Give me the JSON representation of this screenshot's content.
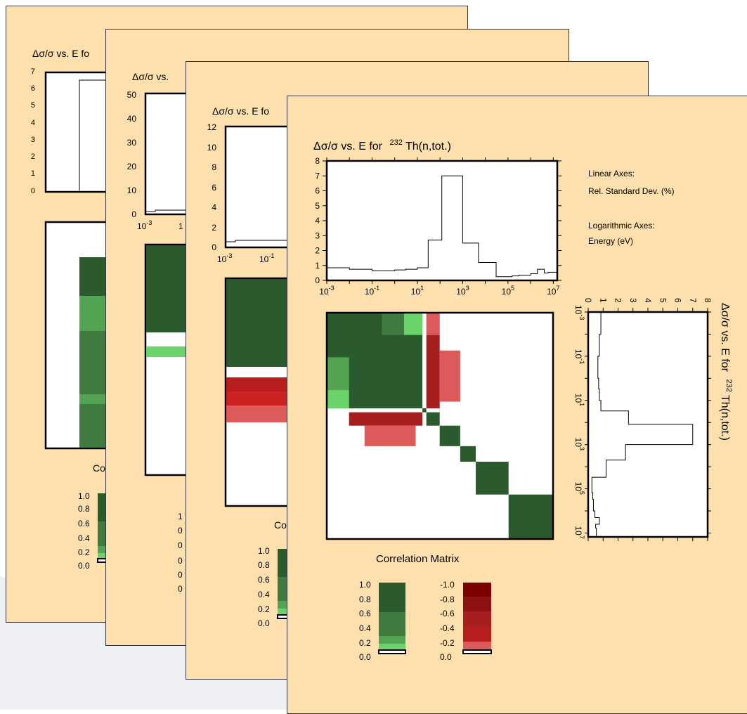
{
  "sheets": [
    {
      "title": "Δσ/σ vs. E fo",
      "y_ticks": [
        "0",
        "1",
        "2",
        "3",
        "4",
        "5",
        "6",
        "7"
      ],
      "matrix_caption": "Co",
      "scale_ticks": [
        "1.0",
        "0.8",
        "0.6",
        "0.4",
        "0.2",
        "0.0"
      ]
    },
    {
      "title": "Δσ/σ vs.",
      "y_ticks": [
        "0",
        "10",
        "20",
        "30",
        "40",
        "50"
      ],
      "x_ticks": [
        "10-3",
        "1"
      ],
      "scale_ticks": [
        "1",
        "0",
        "0",
        "0",
        "0",
        "0"
      ]
    },
    {
      "title": "Δσ/σ vs. E fo",
      "y_ticks": [
        "0",
        "2",
        "4",
        "6",
        "8",
        "10",
        "12"
      ],
      "x_ticks": [
        "10-3",
        "10-1"
      ],
      "matrix_caption": "Co",
      "scale_ticks": [
        "1.0",
        "0.8",
        "0.6",
        "0.4",
        "0.2",
        "0.0"
      ]
    }
  ],
  "front": {
    "title_main": "Δσ/σ vs. E for",
    "title_nuclide_mass": "232",
    "title_reaction": "Th(n,tot.)",
    "info": {
      "linear_header": "Linear Axes:",
      "linear_value": "Rel. Standard Dev. (%)",
      "log_header": "Logarithmic Axes:",
      "log_value": "Energy (eV)"
    },
    "matrix_caption": "Correlation Matrix",
    "pos_scale_labels": [
      "1.0",
      "0.8",
      "0.6",
      "0.4",
      "0.2",
      "0.0"
    ],
    "neg_scale_labels": [
      "-1.0",
      "-0.8",
      "-0.6",
      "-0.4",
      "-0.2",
      "0.0"
    ]
  },
  "chart_data": [
    {
      "type": "line",
      "title": "Δσ/σ vs. E for 232Th(n,tot.)",
      "xlabel": "Energy (eV)",
      "ylabel": "Rel. Standard Dev. (%)",
      "x_scale": "log",
      "xlim": [
        0.001,
        15000000
      ],
      "ylim": [
        0,
        8
      ],
      "x_ticks": [
        "10-3",
        "10-1",
        "101",
        "103",
        "105",
        "107"
      ],
      "y_ticks": [
        "0",
        "1",
        "2",
        "3",
        "4",
        "5",
        "6",
        "7",
        "8"
      ],
      "step_edges": [
        0.001,
        0.01,
        0.1,
        1,
        3,
        10,
        30,
        120,
        1000,
        5000,
        30000,
        150000,
        300000,
        1000000,
        2000000,
        4000000,
        6000000,
        15000000
      ],
      "values": [
        0.85,
        0.75,
        0.65,
        0.7,
        0.75,
        0.85,
        2.7,
        7.0,
        2.5,
        1.2,
        0.25,
        0.3,
        0.35,
        0.45,
        0.75,
        0.5,
        0.55
      ],
      "grid": false
    },
    {
      "type": "heatmap",
      "title": "Correlation Matrix",
      "xlim": [
        0.001,
        15000000
      ],
      "ylim": [
        0.001,
        15000000
      ],
      "scale": "log",
      "color_scale_positive": [
        {
          "range": [
            0.0,
            0.1
          ],
          "color": "#ffffff"
        },
        {
          "range": [
            0.1,
            0.2
          ],
          "color": "#6ad46a"
        },
        {
          "range": [
            0.2,
            0.4
          ],
          "color": "#52a352"
        },
        {
          "range": [
            0.4,
            0.7
          ],
          "color": "#3f7a3f"
        },
        {
          "range": [
            0.7,
            1.0
          ],
          "color": "#2b5a2e"
        }
      ],
      "color_scale_negative": [
        {
          "range": [
            -0.1,
            0.0
          ],
          "color": "#ffffff"
        },
        {
          "range": [
            -0.2,
            -0.1
          ],
          "color": "#dc5a5a"
        },
        {
          "range": [
            -0.4,
            -0.2
          ],
          "color": "#cc2222"
        },
        {
          "range": [
            -0.6,
            -0.4
          ],
          "color": "#a81e1e"
        },
        {
          "range": [
            -0.8,
            -0.6
          ],
          "color": "#8c1212"
        },
        {
          "range": [
            -1.0,
            -0.8
          ],
          "color": "#7a0000"
        }
      ],
      "blocks": [
        {
          "x": [
            0.001,
            20
          ],
          "y": [
            0.001,
            20
          ],
          "value": 0.85
        },
        {
          "x": [
            0.3,
            3
          ],
          "y": [
            0.001,
            0.01
          ],
          "value": 0.5
        },
        {
          "x": [
            3,
            20
          ],
          "y": [
            0.001,
            0.01
          ],
          "value": 0.15
        },
        {
          "x": [
            0.001,
            0.01
          ],
          "y": [
            0.1,
            3
          ],
          "value": 0.3
        },
        {
          "x": [
            0.001,
            0.01
          ],
          "y": [
            3,
            20
          ],
          "value": 0.15
        },
        {
          "x": [
            30,
            120
          ],
          "y": [
            0.001,
            0.01
          ],
          "value": -0.2
        },
        {
          "x": [
            30,
            120
          ],
          "y": [
            0.01,
            20
          ],
          "value": -0.45
        },
        {
          "x": [
            120,
            1000
          ],
          "y": [
            0.05,
            10
          ],
          "value": -0.2
        },
        {
          "x": [
            0.01,
            20
          ],
          "y": [
            30,
            120
          ],
          "value": -0.45
        },
        {
          "x": [
            0.05,
            10
          ],
          "y": [
            120,
            1000
          ],
          "value": -0.2
        },
        {
          "x": [
            20,
            30
          ],
          "y": [
            20,
            30
          ],
          "value": 0.85
        },
        {
          "x": [
            30,
            120
          ],
          "y": [
            30,
            120
          ],
          "value": 0.85
        },
        {
          "x": [
            120,
            1000
          ],
          "y": [
            120,
            1000
          ],
          "value": 0.85
        },
        {
          "x": [
            1000,
            5000
          ],
          "y": [
            1000,
            5000
          ],
          "value": 0.85
        },
        {
          "x": [
            5000,
            150000
          ],
          "y": [
            5000,
            150000
          ],
          "value": 0.85
        },
        {
          "x": [
            150000,
            15000000
          ],
          "y": [
            150000,
            15000000
          ],
          "value": 0.85
        }
      ]
    }
  ]
}
